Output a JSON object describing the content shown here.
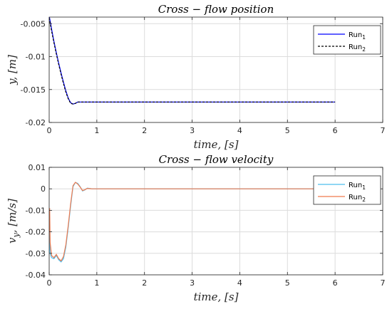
{
  "chart_data": [
    {
      "type": "line",
      "title": "Cross − flow   position",
      "xlabel": "time, [s]",
      "ylabel": "y, [m]",
      "xlim": [
        0,
        7
      ],
      "ylim": [
        -0.02,
        -0.004
      ],
      "xticks": [
        0,
        1,
        2,
        3,
        4,
        5,
        6,
        7
      ],
      "yticks": [
        -0.02,
        -0.015,
        -0.01,
        -0.005
      ],
      "ytick_labels": [
        "-0.02",
        "-0.015",
        "-0.01",
        "-0.005"
      ],
      "grid": true,
      "legend_position": "top-right",
      "series": [
        {
          "name": "Run",
          "name_sub": "1",
          "color": "#0000ff",
          "dash": "solid",
          "x": [
            0,
            0.05,
            0.1,
            0.15,
            0.2,
            0.25,
            0.3,
            0.35,
            0.4,
            0.45,
            0.5,
            0.55,
            0.6,
            0.7,
            0.8,
            1.0,
            2.0,
            3.0,
            4.0,
            5.0,
            6.0
          ],
          "y": [
            -0.0038,
            -0.0058,
            -0.0077,
            -0.0094,
            -0.011,
            -0.0125,
            -0.0139,
            -0.0152,
            -0.0163,
            -0.017,
            -0.0172,
            -0.0171,
            -0.0169,
            -0.0169,
            -0.0169,
            -0.0169,
            -0.0169,
            -0.0169,
            -0.0169,
            -0.0169,
            -0.0169
          ]
        },
        {
          "name": "Run",
          "name_sub": "2",
          "color": "#000000",
          "dash": "dashed",
          "x": [
            0,
            0.05,
            0.1,
            0.15,
            0.2,
            0.25,
            0.3,
            0.35,
            0.4,
            0.45,
            0.5,
            0.55,
            0.6,
            0.7,
            0.8,
            1.0,
            2.0,
            3.0,
            4.0,
            5.0,
            6.0
          ],
          "y": [
            -0.0041,
            -0.0061,
            -0.0079,
            -0.0096,
            -0.0112,
            -0.0127,
            -0.0141,
            -0.0154,
            -0.0164,
            -0.0171,
            -0.0172,
            -0.0171,
            -0.0169,
            -0.0169,
            -0.0169,
            -0.0169,
            -0.0169,
            -0.0169,
            -0.0169,
            -0.0169,
            -0.0169
          ]
        }
      ]
    },
    {
      "type": "line",
      "title": "Cross − flow   velocity",
      "xlabel": "time, [s]",
      "ylabel": "v_y, [m/s]",
      "xlim": [
        0,
        7
      ],
      "ylim": [
        -0.04,
        0.01
      ],
      "xticks": [
        0,
        1,
        2,
        3,
        4,
        5,
        6,
        7
      ],
      "yticks": [
        -0.04,
        -0.03,
        -0.02,
        -0.01,
        0,
        0.01
      ],
      "ytick_labels": [
        "-0.04",
        "-0.03",
        "-0.02",
        "-0.01",
        "0",
        "0.01"
      ],
      "grid": true,
      "legend_position": "top-right",
      "series": [
        {
          "name": "Run",
          "name_sub": "1",
          "color": "#4dbeee",
          "dash": "solid",
          "x": [
            0,
            0.02,
            0.05,
            0.1,
            0.15,
            0.2,
            0.25,
            0.3,
            0.35,
            0.4,
            0.45,
            0.5,
            0.55,
            0.6,
            0.65,
            0.7,
            0.75,
            0.8,
            0.9,
            1.0,
            2.0,
            3.0,
            4.0,
            5.0,
            6.0
          ],
          "y": [
            -0.02,
            -0.03,
            -0.032,
            -0.0325,
            -0.031,
            -0.033,
            -0.034,
            -0.0325,
            -0.027,
            -0.018,
            -0.008,
            0.001,
            0.003,
            0.0025,
            0.001,
            -0.001,
            -0.0005,
            0.0003,
            0,
            0,
            0,
            0,
            0,
            0,
            0
          ]
        },
        {
          "name": "Run",
          "name_sub": "2",
          "color": "#f07a4e",
          "dash": "solid",
          "x": [
            0,
            0.01,
            0.02,
            0.05,
            0.1,
            0.15,
            0.2,
            0.25,
            0.3,
            0.35,
            0.4,
            0.45,
            0.5,
            0.55,
            0.6,
            0.65,
            0.7,
            0.75,
            0.8,
            0.9,
            1.0,
            2.0,
            3.0,
            4.0,
            5.0,
            6.0
          ],
          "y": [
            -0.02,
            -0.009,
            -0.025,
            -0.031,
            -0.032,
            -0.0305,
            -0.0325,
            -0.0335,
            -0.0315,
            -0.026,
            -0.017,
            -0.007,
            0.0015,
            0.003,
            0.0022,
            0.0008,
            -0.0008,
            -0.0004,
            0.0002,
            0,
            0,
            0,
            0,
            0,
            0,
            0
          ]
        }
      ]
    }
  ]
}
